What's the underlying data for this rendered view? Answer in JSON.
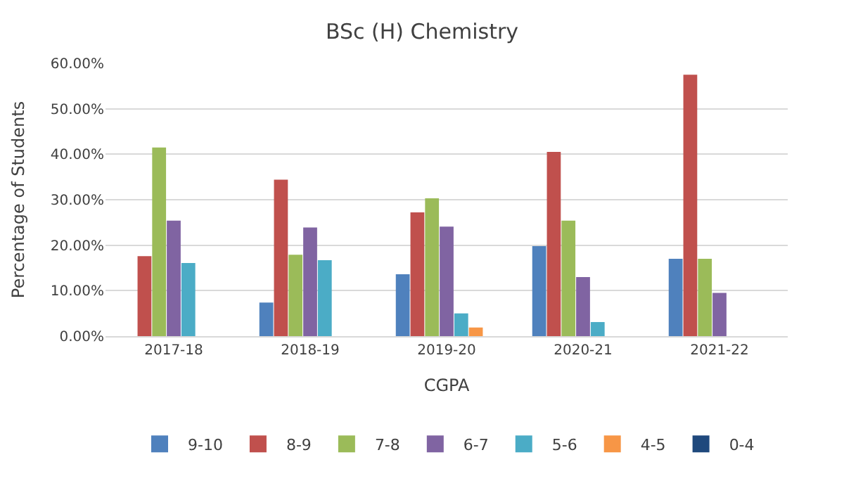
{
  "chart_data": {
    "type": "bar",
    "title": "BSc (H) Chemistry",
    "xlabel": "CGPA",
    "ylabel": "Percentage of Students",
    "categories": [
      "2017-18",
      "2018-19",
      "2019-20",
      "2020-21",
      "2021-22"
    ],
    "series": [
      {
        "name": "9-10",
        "color": "#4f81bd",
        "values": [
          0,
          7.4,
          13.6,
          19.8,
          17.0
        ]
      },
      {
        "name": "8-9",
        "color": "#c0504d",
        "values": [
          17.6,
          34.4,
          27.2,
          40.5,
          57.5
        ]
      },
      {
        "name": "7-8",
        "color": "#9bbb59",
        "values": [
          41.5,
          17.9,
          30.3,
          25.4,
          17.0
        ]
      },
      {
        "name": "6-7",
        "color": "#8064a2",
        "values": [
          25.4,
          23.9,
          24.1,
          13.0,
          9.5
        ]
      },
      {
        "name": "5-6",
        "color": "#4bacc6",
        "values": [
          16.1,
          16.7,
          5.0,
          3.1,
          0
        ]
      },
      {
        "name": "4-5",
        "color": "#f79646",
        "values": [
          0,
          0,
          1.9,
          0,
          0
        ]
      },
      {
        "name": "0-4",
        "color": "#1f497d",
        "values": [
          0,
          0,
          0,
          0,
          0
        ]
      }
    ],
    "ylim": [
      0,
      60
    ],
    "yticks": [
      {
        "value": 0,
        "label": "0.00%"
      },
      {
        "value": 10,
        "label": "10.00%"
      },
      {
        "value": 20,
        "label": "20.00%"
      },
      {
        "value": 30,
        "label": "30.00%"
      },
      {
        "value": 40,
        "label": "40.00%"
      },
      {
        "value": 50,
        "label": "50.00%"
      },
      {
        "value": 60,
        "label": "60.00%"
      }
    ],
    "grid": "y",
    "legend": "bottom"
  }
}
